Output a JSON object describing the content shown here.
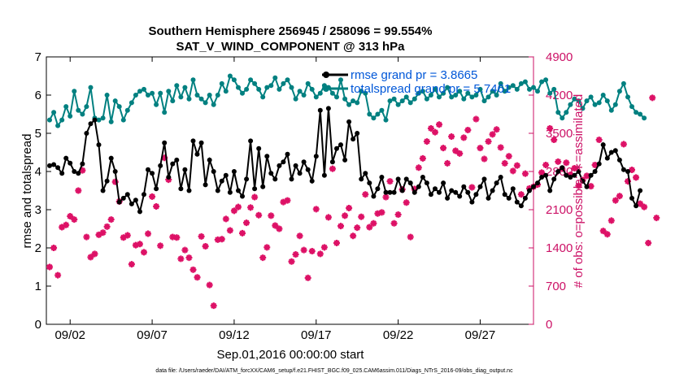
{
  "chart_data": {
    "type": "line",
    "title_line1": "Southern Hemisphere 256945 / 258096 = 99.554%",
    "title_line2": "SAT_V_WIND_COMPONENT @ 313 hPa",
    "xlabel": "Sep.01,2016 00:00:00 start",
    "ylabel_left": "rmse and totalspread",
    "ylabel_right": "# of obs: o=possible; ∗=assimilated",
    "footnote": "data file: /Users/raeder/DAI/ATM_forcXX/CAM6_setup/f.e21.FHIST_BGC.f09_025.CAM6assim.011/Diags_NTrS_2016-09/obs_diag_output.nc",
    "xlim": [
      0.55,
      30.25
    ],
    "x_tick_values": [
      2,
      7,
      12,
      17,
      22,
      27
    ],
    "x_tick_labels": [
      "09/02",
      "09/07",
      "09/12",
      "09/17",
      "09/22",
      "09/27"
    ],
    "ylim_left": [
      0,
      7
    ],
    "y_ticks_left": [
      "0",
      "1",
      "2",
      "3",
      "4",
      "5",
      "6",
      "7"
    ],
    "ylim_right": [
      0,
      4900
    ],
    "y_ticks_right": [
      "0",
      "700",
      "1400",
      "2100",
      "2800",
      "3500",
      "4200",
      "4900"
    ],
    "grid": false,
    "legend_position": "top-right",
    "colors": {
      "rmse": "#000000",
      "spread": "#008080",
      "obs": "#dd1166",
      "legend_text": "#0057d8",
      "right_axis": "#cc1166"
    },
    "series": [
      {
        "name": "rmse grand pr = 3.8665",
        "x_start": 0.75,
        "x_step": 0.25,
        "values": [
          4.15,
          4.18,
          4.1,
          3.95,
          4.35,
          4.22,
          4.0,
          3.95,
          4.2,
          5.0,
          5.25,
          5.35,
          4.7,
          3.5,
          3.75,
          4.35,
          4.0,
          3.2,
          3.3,
          3.4,
          3.15,
          3.25,
          2.95,
          3.4,
          4.05,
          3.95,
          3.55,
          4.15,
          4.75,
          3.85,
          4.2,
          4.3,
          3.55,
          4.05,
          3.5,
          4.8,
          4.45,
          4.75,
          3.65,
          4.3,
          4.0,
          3.5,
          3.75,
          3.9,
          3.45,
          4.0,
          3.5,
          3.35,
          3.8,
          4.8,
          3.55,
          4.6,
          3.6,
          4.4,
          3.95,
          3.8,
          4.15,
          4.25,
          4.45,
          3.8,
          4.15,
          3.95,
          4.25,
          4.05,
          3.75,
          4.4,
          5.6,
          3.9,
          5.65,
          4.25,
          4.6,
          4.7,
          4.3,
          5.3,
          4.85,
          5.0,
          3.8,
          3.95,
          3.7,
          3.35,
          3.55,
          3.85,
          3.45,
          3.45,
          3.45,
          3.8,
          3.5,
          3.8,
          3.7,
          3.45,
          3.6,
          3.85,
          3.7,
          3.4,
          3.55,
          3.45,
          3.7,
          3.3,
          3.5,
          3.45,
          3.35,
          3.6,
          3.45,
          3.2,
          3.4,
          3.6,
          3.8,
          3.3,
          3.5,
          3.7,
          3.85,
          3.4,
          3.3,
          3.55,
          3.2,
          3.1,
          3.3,
          3.5,
          3.6,
          3.7,
          3.85,
          3.9,
          3.5,
          3.8,
          4.0,
          4.1,
          3.9,
          3.85,
          3.9,
          4.0,
          3.75,
          3.6,
          3.9,
          4.0,
          4.2,
          4.7,
          4.35,
          4.5,
          4.55,
          4.3,
          4.05,
          4.0,
          3.3,
          3.1,
          3.5
        ]
      },
      {
        "name": "totalspread grand pr = 5.7461",
        "x_start": 0.75,
        "x_step": 0.25,
        "values": [
          5.35,
          5.55,
          5.2,
          5.35,
          5.7,
          5.45,
          6.1,
          5.6,
          5.5,
          5.7,
          6.2,
          5.4,
          5.35,
          5.4,
          6.0,
          5.3,
          5.85,
          5.7,
          5.35,
          5.6,
          5.8,
          6.0,
          6.1,
          6.15,
          6.0,
          6.05,
          5.75,
          6.05,
          5.55,
          6.1,
          5.85,
          6.25,
          5.95,
          6.2,
          5.9,
          6.4,
          6.0,
          5.9,
          5.8,
          6.0,
          5.75,
          6.0,
          6.3,
          6.1,
          6.5,
          6.4,
          6.2,
          6.05,
          6.15,
          6.4,
          6.3,
          6.15,
          5.95,
          6.2,
          6.25,
          6.45,
          6.15,
          6.3,
          6.4,
          6.2,
          5.9,
          6.1,
          6.0,
          6.3,
          6.15,
          5.95,
          6.05,
          6.25,
          6.2,
          6.05,
          5.95,
          6.4,
          5.9,
          5.75,
          5.85,
          5.8,
          6.1,
          6.05,
          5.5,
          5.4,
          5.5,
          5.6,
          5.35,
          5.85,
          5.9,
          5.75,
          5.85,
          5.95,
          5.8,
          5.9,
          6.05,
          6.1,
          5.9,
          6.0,
          6.15,
          5.95,
          6.05,
          6.2,
          5.95,
          6.0,
          6.1,
          5.9,
          6.05,
          5.95,
          6.0,
          6.15,
          5.85,
          5.95,
          6.1,
          6.0,
          6.3,
          6.1,
          6.2,
          6.25,
          6.15,
          6.3,
          6.35,
          6.15,
          6.2,
          6.1,
          6.35,
          6.4,
          6.05,
          6.15,
          5.55,
          5.4,
          5.55,
          5.75,
          5.9,
          5.85,
          5.65,
          5.85,
          5.95,
          5.75,
          5.8,
          6.0,
          5.85,
          5.6,
          5.75,
          6.1,
          6.3,
          5.95,
          5.7,
          5.55,
          5.5,
          5.4
        ]
      },
      {
        "name": "obs assimilated",
        "x_start": 0.75,
        "x_step": 0.25,
        "values": [
          1050,
          1400,
          900,
          1780,
          1820,
          1980,
          1920,
          2450,
          2820,
          1600,
          1230,
          1290,
          1640,
          1680,
          1790,
          1920,
          2610,
          2250,
          1590,
          1630,
          1100,
          1450,
          1470,
          1320,
          1660,
          2340,
          2160,
          1440,
          3050,
          2650,
          1600,
          1590,
          1200,
          1360,
          1220,
          1000,
          860,
          1610,
          1430,
          720,
          340,
          1550,
          1560,
          1930,
          1720,
          2080,
          2150,
          1670,
          1860,
          2140,
          2330,
          2000,
          1220,
          1410,
          1990,
          1810,
          1750,
          2240,
          2270,
          1150,
          1280,
          1620,
          1360,
          850,
          1340,
          2110,
          1290,
          1410,
          1960,
          2850,
          1490,
          1800,
          1990,
          2130,
          1620,
          1770,
          1970,
          2380,
          1780,
          1850,
          2030,
          2050,
          2330,
          2620,
          1850,
          2010,
          2470,
          2230,
          1600,
          2480,
          2870,
          3040,
          3350,
          3590,
          3520,
          3660,
          3230,
          2950,
          3440,
          3180,
          3130,
          3420,
          3560,
          2510,
          3760,
          3230,
          3030,
          3350,
          3480,
          3570,
          3240,
          2950,
          3080,
          2810,
          2910,
          2380,
          2760,
          2490,
          2520,
          2560,
          2780,
          2920,
          3590,
          3380,
          2980,
          2850,
          2960,
          2740,
          2860,
          2540,
          2640,
          2720,
          2530,
          2920,
          3380,
          1710,
          1650,
          1900,
          2270,
          2350,
          3300,
          2620,
          2830,
          2690,
          2210,
          2150,
          1490,
          4150,
          1950
        ]
      }
    ]
  }
}
